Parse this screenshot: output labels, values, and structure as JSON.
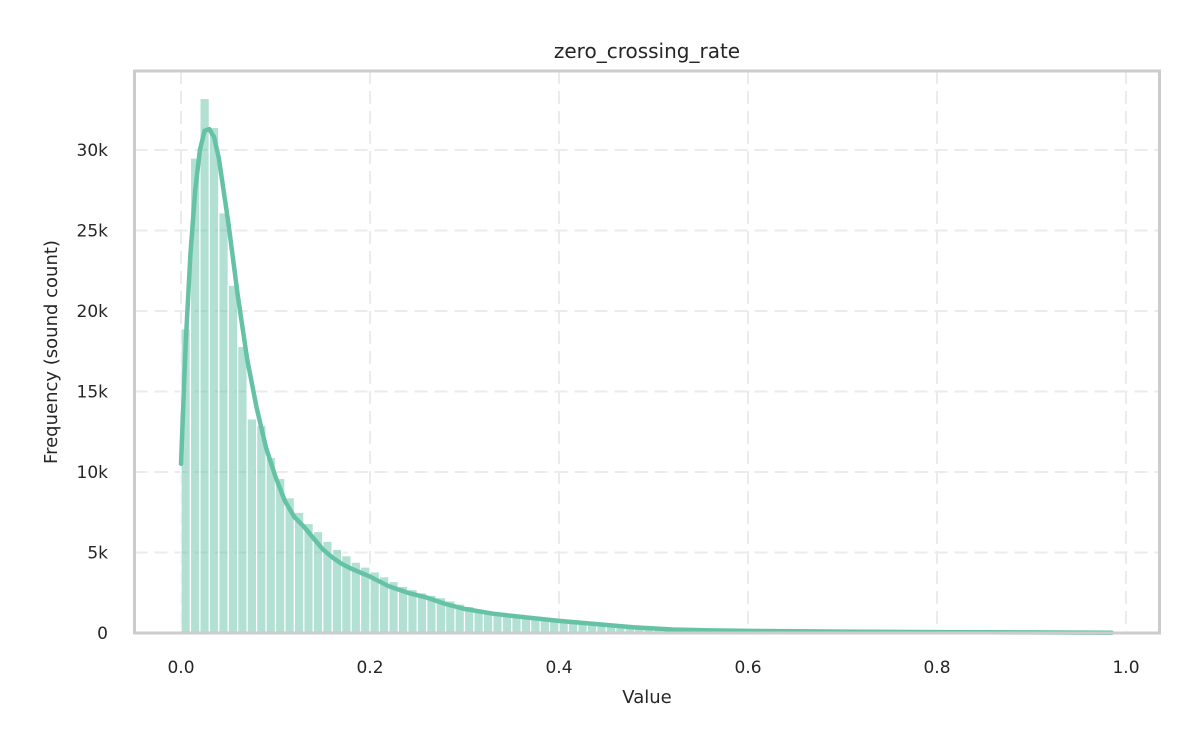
{
  "chart_data": {
    "type": "bar",
    "subtype": "histogram_with_kde",
    "title": "zero_crossing_rate",
    "xlabel": "Value",
    "ylabel": "Frequency (sound count)",
    "xlim": [
      -0.05,
      1.035
    ],
    "ylim": [
      0,
      35000
    ],
    "x_ticks": [
      0.0,
      0.2,
      0.4,
      0.6,
      0.8,
      1.0
    ],
    "x_tick_labels": [
      "0.0",
      "0.2",
      "0.4",
      "0.6",
      "0.8",
      "1.0"
    ],
    "y_ticks": [
      0,
      5000,
      10000,
      15000,
      20000,
      25000,
      30000
    ],
    "y_tick_labels": [
      "0",
      "5k",
      "10k",
      "15k",
      "20k",
      "25k",
      "30k"
    ],
    "grid": true,
    "legend": null,
    "bin_width": 0.01,
    "bin_start": 0.0,
    "counts": [
      18900,
      29500,
      33200,
      31400,
      26100,
      21600,
      17800,
      13300,
      12900,
      10900,
      9600,
      8400,
      7500,
      6800,
      6300,
      5700,
      5200,
      4800,
      4400,
      4100,
      3800,
      3500,
      3200,
      2900,
      2700,
      2500,
      2350,
      2200,
      2000,
      1800,
      1650,
      1500,
      1400,
      1300,
      1200,
      1100,
      1000,
      900,
      830,
      760,
      700,
      640,
      580,
      530,
      490,
      450,
      410,
      370,
      330,
      290,
      250,
      210,
      180,
      160,
      145,
      135,
      125,
      118,
      112,
      106,
      100,
      95,
      90,
      85,
      80,
      76,
      72,
      68,
      64,
      60,
      57,
      54,
      51,
      48,
      45,
      42,
      40,
      38,
      36,
      34,
      32,
      30,
      28,
      26,
      24,
      22,
      20,
      18,
      16,
      15,
      14,
      13,
      12,
      11,
      10,
      9,
      8,
      7,
      6
    ],
    "kde": {
      "x": [
        0.0,
        0.005,
        0.01,
        0.015,
        0.02,
        0.025,
        0.03,
        0.035,
        0.04,
        0.05,
        0.06,
        0.07,
        0.08,
        0.09,
        0.1,
        0.11,
        0.12,
        0.13,
        0.14,
        0.15,
        0.16,
        0.17,
        0.18,
        0.2,
        0.22,
        0.24,
        0.26,
        0.28,
        0.3,
        0.33,
        0.36,
        0.4,
        0.44,
        0.48,
        0.52,
        0.56,
        0.6,
        0.65,
        0.7,
        0.75,
        0.8,
        0.85,
        0.9,
        0.95,
        0.985
      ],
      "y": [
        10500,
        18000,
        23500,
        27500,
        30000,
        31200,
        31300,
        30800,
        29500,
        25500,
        21000,
        17000,
        14000,
        11500,
        9700,
        8200,
        7200,
        6600,
        5900,
        5200,
        4700,
        4300,
        4000,
        3500,
        2900,
        2500,
        2200,
        1800,
        1500,
        1200,
        1000,
        750,
        550,
        350,
        220,
        160,
        130,
        110,
        90,
        70,
        55,
        45,
        35,
        25,
        15
      ]
    },
    "bar_color": "#66c2a5",
    "bar_opacity": 0.5,
    "kde_color": "#66c2a5"
  }
}
